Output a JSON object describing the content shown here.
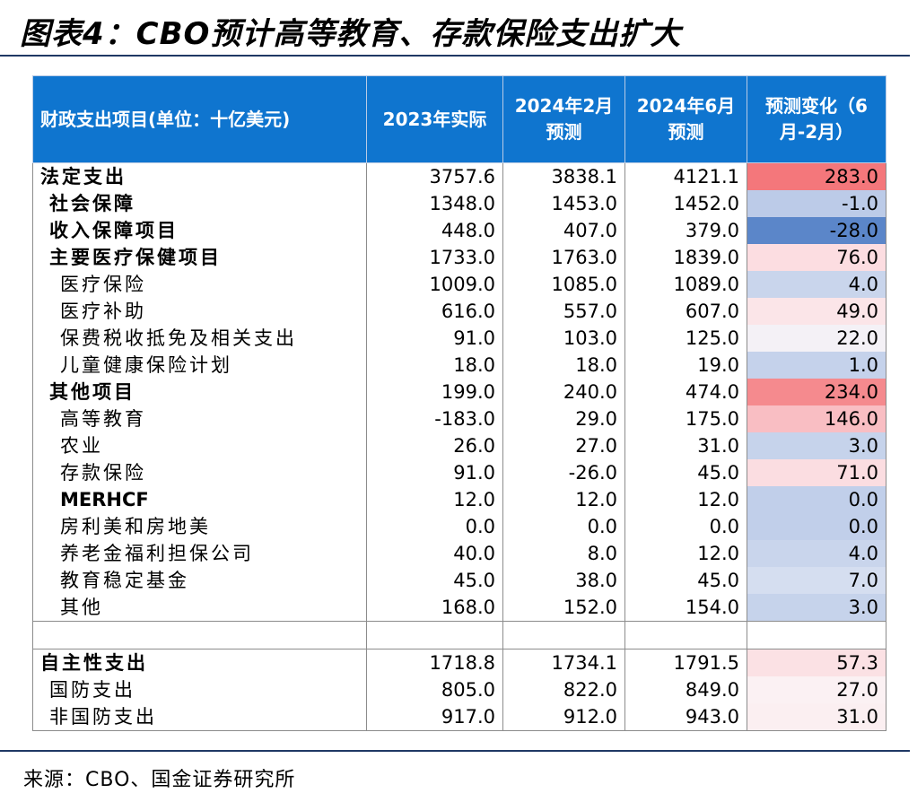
{
  "title": "图表4：CBO预计高等教育、存款保险支出扩大",
  "source": "来源：CBO、国金证券研究所",
  "colors": {
    "header_bg": "#0f75cf",
    "rule": "#1f3864"
  },
  "table": {
    "headers": [
      "财政支出项目(单位：十亿美元)",
      "2023年实际",
      "2024年2月\n预测",
      "2024年6月\n预测",
      "预测变化（6\n月-2月）"
    ],
    "rows": [
      {
        "label": "法定支出",
        "level": 0,
        "v2023": "3757.6",
        "feb": "3838.1",
        "jun": "4121.1",
        "chg": "283.0",
        "bg": "#f4777b"
      },
      {
        "label": "社会保障",
        "level": 1,
        "v2023": "1348.0",
        "feb": "1453.0",
        "jun": "1452.0",
        "chg": "-1.0",
        "bg": "#bccbe8"
      },
      {
        "label": "收入保障项目",
        "level": 1,
        "v2023": "448.0",
        "feb": "407.0",
        "jun": "379.0",
        "chg": "-28.0",
        "bg": "#5b86c9"
      },
      {
        "label": "主要医疗保健项目",
        "level": 1,
        "v2023": "1733.0",
        "feb": "1763.0",
        "jun": "1839.0",
        "chg": "76.0",
        "bg": "#fcdde1"
      },
      {
        "label": "医疗保险",
        "level": 2,
        "v2023": "1009.0",
        "feb": "1085.0",
        "jun": "1089.0",
        "chg": "4.0",
        "bg": "#c9d5ec"
      },
      {
        "label": "医疗补助",
        "level": 2,
        "v2023": "616.0",
        "feb": "557.0",
        "jun": "607.0",
        "chg": "49.0",
        "bg": "#fbe5e8"
      },
      {
        "label": "保费税收抵免及相关支出",
        "level": 2,
        "v2023": "91.0",
        "feb": "103.0",
        "jun": "125.0",
        "chg": "22.0",
        "bg": "#f4f1f6"
      },
      {
        "label": "儿童健康保险计划",
        "level": 2,
        "v2023": "18.0",
        "feb": "18.0",
        "jun": "19.0",
        "chg": "1.0",
        "bg": "#c5d2eb"
      },
      {
        "label": "其他项目",
        "level": 1,
        "v2023": "199.0",
        "feb": "240.0",
        "jun": "474.0",
        "chg": "234.0",
        "bg": "#f58a8e"
      },
      {
        "label": "高等教育",
        "level": 2,
        "v2023": "-183.0",
        "feb": "29.0",
        "jun": "175.0",
        "chg": "146.0",
        "bg": "#f9bec3"
      },
      {
        "label": "农业",
        "level": 2,
        "v2023": "26.0",
        "feb": "27.0",
        "jun": "31.0",
        "chg": "3.0",
        "bg": "#c6d3eb"
      },
      {
        "label": "存款保险",
        "level": 2,
        "v2023": "91.0",
        "feb": "-26.0",
        "jun": "45.0",
        "chg": "71.0",
        "bg": "#fbdde1"
      },
      {
        "label": "MERHCF",
        "level": 2,
        "latin": true,
        "v2023": "12.0",
        "feb": "12.0",
        "jun": "12.0",
        "chg": "0.0",
        "bg": "#c1cfea"
      },
      {
        "label": "房利美和房地美",
        "level": 2,
        "v2023": "0.0",
        "feb": "0.0",
        "jun": "0.0",
        "chg": "0.0",
        "bg": "#c1cfea"
      },
      {
        "label": "养老金福利担保公司",
        "level": 2,
        "v2023": "40.0",
        "feb": "8.0",
        "jun": "12.0",
        "chg": "4.0",
        "bg": "#c9d5ec"
      },
      {
        "label": "教育稳定基金",
        "level": 2,
        "v2023": "45.0",
        "feb": "38.0",
        "jun": "45.0",
        "chg": "7.0",
        "bg": "#d5def0"
      },
      {
        "label": "其他",
        "level": 2,
        "v2023": "168.0",
        "feb": "152.0",
        "jun": "154.0",
        "chg": "3.0",
        "bg": "#c6d3eb"
      }
    ],
    "rows_bottom": [
      {
        "label": "自主性支出",
        "level": 0,
        "v2023": "1718.8",
        "feb": "1734.1",
        "jun": "1791.5",
        "chg": "57.3",
        "bg": "#fbe1e4"
      },
      {
        "label": "国防支出",
        "level": 1,
        "plain": true,
        "v2023": "805.0",
        "feb": "822.0",
        "jun": "849.0",
        "chg": "27.0",
        "bg": "#fbf1f3"
      },
      {
        "label": "非国防支出",
        "level": 1,
        "plain": true,
        "v2023": "917.0",
        "feb": "912.0",
        "jun": "943.0",
        "chg": "31.0",
        "bg": "#fbeff1"
      }
    ]
  }
}
